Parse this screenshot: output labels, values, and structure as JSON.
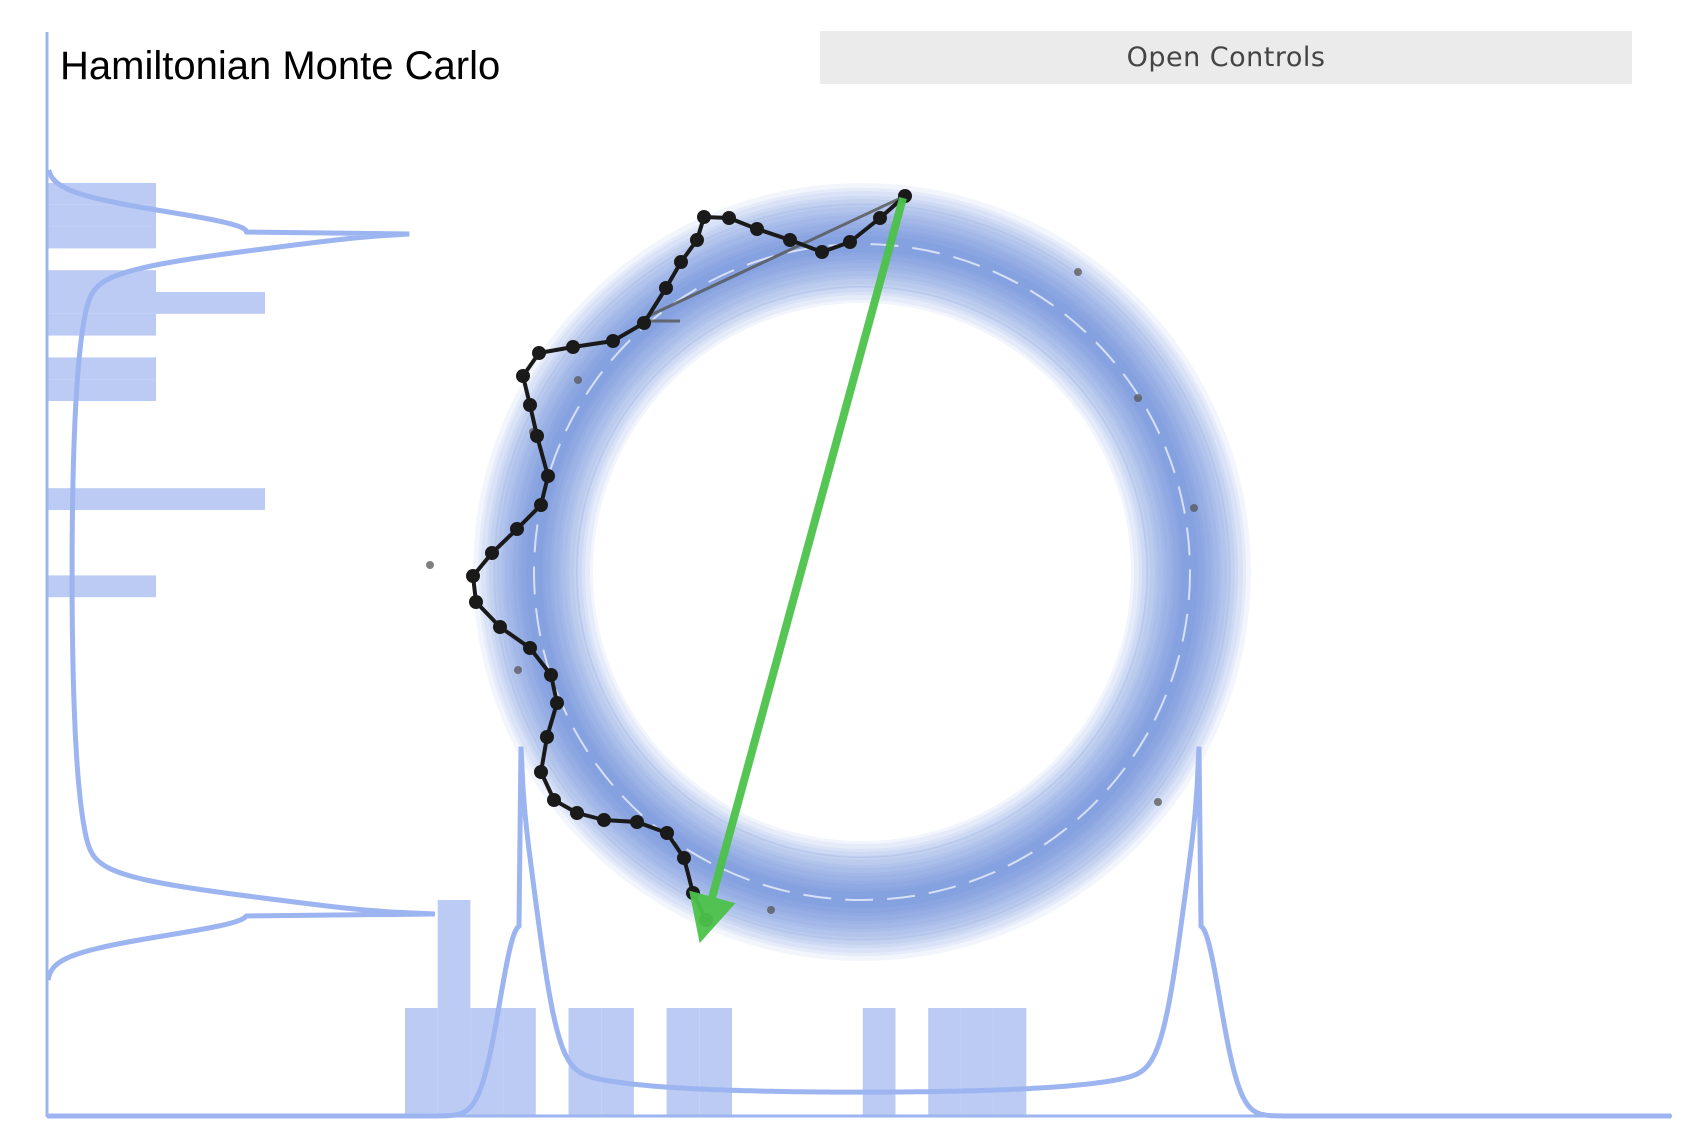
{
  "title": "Hamiltonian Monte Carlo",
  "controls": {
    "label": "Open Controls"
  },
  "colors": {
    "density": "#4a78d6",
    "histogram": "#bccbf4",
    "marginal_curve": "#9cb4ef",
    "trajectory": "#1a1a1a",
    "proposal_arrow": "#4cc24a",
    "samples": "#555555"
  },
  "chart_data": {
    "type": "scatter",
    "title": "",
    "target": "ring-shaped (donut) density",
    "trajectory_steps": 43,
    "x_histogram_counts": [
      1,
      2,
      1,
      1,
      0,
      1,
      1,
      0,
      1,
      1,
      0,
      0,
      0,
      0,
      1,
      0,
      1,
      1,
      1
    ],
    "y_histogram_counts": [
      1,
      1,
      1,
      0,
      1,
      2,
      1,
      0,
      1,
      1,
      0,
      0,
      0,
      0,
      2,
      0,
      0,
      0,
      1,
      0,
      0,
      0,
      0,
      0,
      0,
      0,
      0,
      0,
      0,
      0
    ]
  }
}
